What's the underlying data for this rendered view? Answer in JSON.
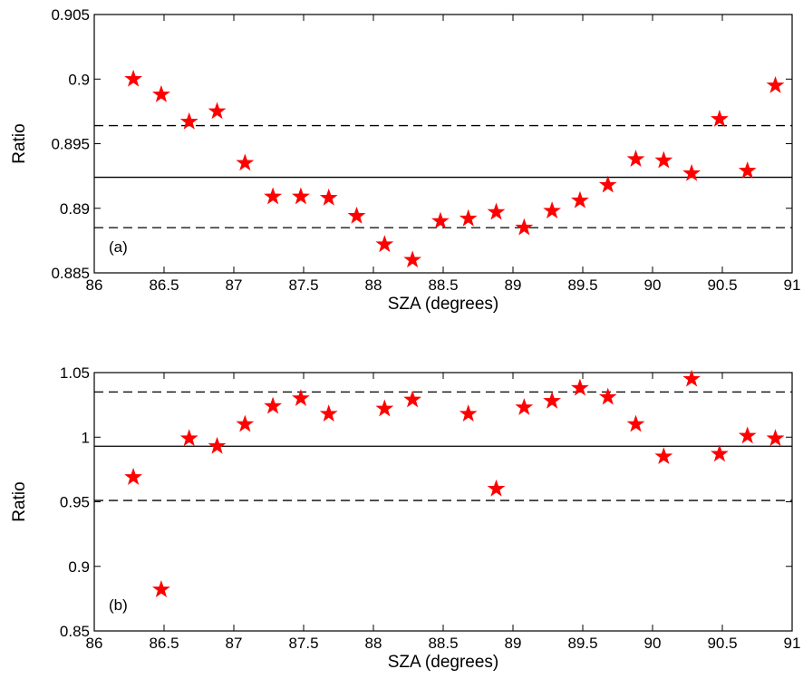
{
  "chart_data": [
    {
      "type": "scatter",
      "panel_label": "(a)",
      "xlabel": "SZA (degrees)",
      "ylabel": "Ratio",
      "xlim": [
        86,
        91
      ],
      "ylim": [
        0.885,
        0.905
      ],
      "xticks": [
        "86",
        "86.5",
        "87",
        "87.5",
        "88",
        "88.5",
        "89",
        "89.5",
        "90",
        "90.5",
        "91"
      ],
      "yticks": [
        "0.885",
        "0.89",
        "0.895",
        "0.9",
        "0.905"
      ],
      "marker": "star",
      "marker_color": "#ff0000",
      "points": [
        {
          "x": 86.28,
          "y": 0.9
        },
        {
          "x": 86.48,
          "y": 0.8988
        },
        {
          "x": 86.68,
          "y": 0.8967
        },
        {
          "x": 86.88,
          "y": 0.8975
        },
        {
          "x": 87.08,
          "y": 0.8935
        },
        {
          "x": 87.28,
          "y": 0.8909
        },
        {
          "x": 87.48,
          "y": 0.8909
        },
        {
          "x": 87.68,
          "y": 0.8908
        },
        {
          "x": 87.88,
          "y": 0.8894
        },
        {
          "x": 88.08,
          "y": 0.8872
        },
        {
          "x": 88.28,
          "y": 0.886
        },
        {
          "x": 88.48,
          "y": 0.889
        },
        {
          "x": 88.68,
          "y": 0.8892
        },
        {
          "x": 88.88,
          "y": 0.8897
        },
        {
          "x": 89.08,
          "y": 0.8885
        },
        {
          "x": 89.28,
          "y": 0.8898
        },
        {
          "x": 89.48,
          "y": 0.8906
        },
        {
          "x": 89.68,
          "y": 0.8918
        },
        {
          "x": 89.88,
          "y": 0.8938
        },
        {
          "x": 90.08,
          "y": 0.8937
        },
        {
          "x": 90.28,
          "y": 0.8927
        },
        {
          "x": 90.48,
          "y": 0.8969
        },
        {
          "x": 90.68,
          "y": 0.8929
        },
        {
          "x": 90.88,
          "y": 0.8995
        }
      ],
      "mean_line": 0.8924,
      "bound_lines": [
        0.8964,
        0.8885
      ],
      "grid": false,
      "legend": "none"
    },
    {
      "type": "scatter",
      "panel_label": "(b)",
      "xlabel": "SZA (degrees)",
      "ylabel": "Ratio",
      "xlim": [
        86,
        91
      ],
      "ylim": [
        0.85,
        1.05
      ],
      "xticks": [
        "86",
        "86.5",
        "87",
        "87.5",
        "88",
        "88.5",
        "89",
        "89.5",
        "90",
        "90.5",
        "91"
      ],
      "yticks": [
        "0.85",
        "0.9",
        "0.95",
        "1",
        "1.05"
      ],
      "marker": "star",
      "marker_color": "#ff0000",
      "points": [
        {
          "x": 86.28,
          "y": 0.969
        },
        {
          "x": 86.48,
          "y": 0.882
        },
        {
          "x": 86.68,
          "y": 0.999
        },
        {
          "x": 86.88,
          "y": 0.993
        },
        {
          "x": 87.08,
          "y": 1.01
        },
        {
          "x": 87.28,
          "y": 1.024
        },
        {
          "x": 87.48,
          "y": 1.03
        },
        {
          "x": 87.68,
          "y": 1.018
        },
        {
          "x": 88.08,
          "y": 1.022
        },
        {
          "x": 88.28,
          "y": 1.029
        },
        {
          "x": 88.68,
          "y": 1.018
        },
        {
          "x": 88.88,
          "y": 0.96
        },
        {
          "x": 89.08,
          "y": 1.023
        },
        {
          "x": 89.28,
          "y": 1.028
        },
        {
          "x": 89.48,
          "y": 1.038
        },
        {
          "x": 89.68,
          "y": 1.031
        },
        {
          "x": 89.88,
          "y": 1.01
        },
        {
          "x": 90.08,
          "y": 0.985
        },
        {
          "x": 90.28,
          "y": 1.045
        },
        {
          "x": 90.48,
          "y": 0.987
        },
        {
          "x": 90.68,
          "y": 1.001
        },
        {
          "x": 90.88,
          "y": 0.999
        }
      ],
      "mean_line": 0.993,
      "bound_lines": [
        1.035,
        0.951
      ],
      "grid": false,
      "legend": "none"
    }
  ]
}
